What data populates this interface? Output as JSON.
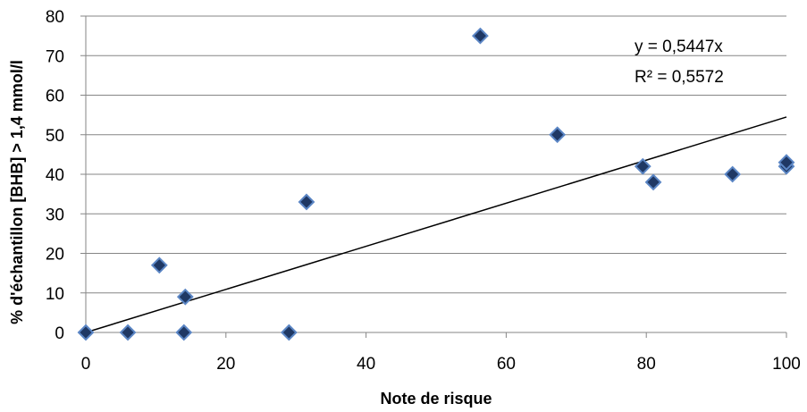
{
  "chart_data": {
    "type": "scatter",
    "title": "",
    "xlabel": "Note de risque",
    "ylabel": "% d'échantillon [BHB] > 1,4 mmol/l",
    "xlim": [
      0,
      100
    ],
    "ylim": [
      0,
      80
    ],
    "x_ticks": [
      "0",
      "20",
      "40",
      "60",
      "80",
      "100"
    ],
    "y_ticks": [
      "0",
      "10",
      "20",
      "30",
      "40",
      "50",
      "60",
      "70",
      "80"
    ],
    "grid": "horizontal",
    "legend": "none",
    "marker": "diamond",
    "colors": {
      "marker_fill": "#1f3864",
      "marker_edge": "#5b86c5",
      "trendline": "#000000",
      "grid": "#868686"
    },
    "points": [
      {
        "x": 0,
        "y": 0
      },
      {
        "x": 6,
        "y": 0
      },
      {
        "x": 10.5,
        "y": 17
      },
      {
        "x": 14,
        "y": 0
      },
      {
        "x": 14.2,
        "y": 9
      },
      {
        "x": 29,
        "y": 0
      },
      {
        "x": 31.5,
        "y": 33
      },
      {
        "x": 56.3,
        "y": 75
      },
      {
        "x": 67.3,
        "y": 50
      },
      {
        "x": 79.5,
        "y": 42
      },
      {
        "x": 81,
        "y": 38
      },
      {
        "x": 92.3,
        "y": 40
      },
      {
        "x": 100,
        "y": 42
      },
      {
        "x": 100,
        "y": 43
      }
    ],
    "trendline": {
      "slope": 0.5447,
      "intercept": 0,
      "equation": "y = 0,5447x",
      "r_squared": "R² = 0,5572"
    }
  }
}
